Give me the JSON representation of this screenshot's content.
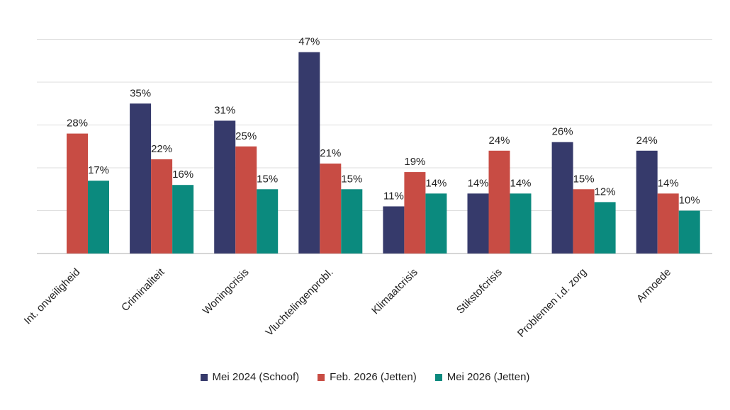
{
  "chart_data": {
    "type": "bar",
    "categories": [
      "Int. onveiligheid",
      "Criminaliteit",
      "Woningcrisis",
      "Vluchtelingenprobl.",
      "Klimaatcrisis",
      "Stikstofcrisis",
      "Problemen i.d. zorg",
      "Armoede"
    ],
    "series": [
      {
        "name": "Mei 2024 (Schoof)",
        "color": "#363a6b",
        "values": [
          null,
          35,
          31,
          47,
          11,
          14,
          26,
          24
        ]
      },
      {
        "name": "Feb. 2026 (Jetten)",
        "color": "#c84c44",
        "values": [
          28,
          22,
          25,
          21,
          19,
          24,
          15,
          14
        ]
      },
      {
        "name": "Mei 2026 (Jetten)",
        "color": "#0b8a7e",
        "values": [
          17,
          16,
          15,
          15,
          14,
          14,
          12,
          10
        ]
      }
    ],
    "value_labels": [
      [
        "",
        "35%",
        "31%",
        "47%",
        "11%",
        "14%",
        "26%",
        "24%"
      ],
      [
        "28%",
        "22%",
        "25%",
        "21%",
        "19%",
        "24%",
        "15%",
        "14%"
      ],
      [
        "17%",
        "16%",
        "15%",
        "15%",
        "14%",
        "14%",
        "12%",
        "10%"
      ]
    ],
    "ylim": [
      0,
      50
    ],
    "grid": true,
    "y_tick_labels_shown": false,
    "legend_position": "bottom",
    "title": "",
    "xlabel": "",
    "ylabel": ""
  }
}
